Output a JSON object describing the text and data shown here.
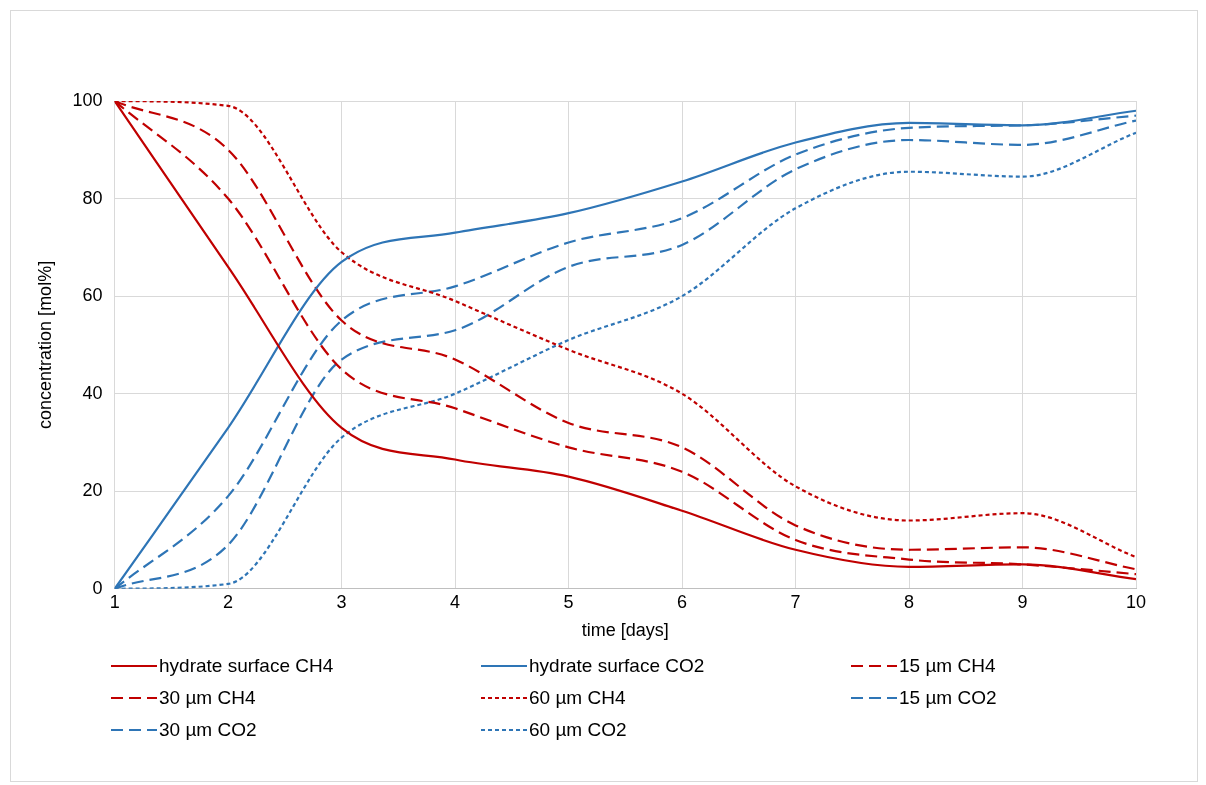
{
  "chart_data": {
    "type": "line",
    "xlabel": "time [days]",
    "ylabel": "concentration [mol%]",
    "x": [
      1,
      2,
      3,
      4,
      5,
      6,
      7,
      8,
      9,
      10
    ],
    "xlim": [
      1,
      10
    ],
    "xticks": [
      1,
      2,
      3,
      4,
      5,
      6,
      7,
      8,
      9,
      10
    ],
    "ylim": [
      0,
      100
    ],
    "yticks": [
      0,
      20,
      40,
      60,
      80,
      100
    ],
    "grid": true,
    "legend": "bottom",
    "marker": "none",
    "series": [
      {
        "name": "hydrate surface CH4",
        "color": "#c00000",
        "line_style": "solid",
        "values": [
          100,
          66,
          33,
          26.5,
          23,
          16,
          8,
          4.5,
          5,
          2
        ]
      },
      {
        "name": "hydrate surface CO2",
        "color": "#2e75b6",
        "line_style": "solid",
        "values": [
          0,
          33,
          67,
          73,
          77,
          83.5,
          91.5,
          95.5,
          95,
          98
        ]
      },
      {
        "name": "15 µm CH4",
        "color": "#c00000",
        "line_style": "dashed",
        "values": [
          100,
          80,
          45,
          37,
          29,
          24,
          10,
          6,
          5,
          3
        ]
      },
      {
        "name": "30 µm CH4",
        "color": "#c00000",
        "line_style": "dashed",
        "values": [
          100,
          90,
          55,
          47,
          34,
          29,
          13,
          8,
          8.5,
          4
        ]
      },
      {
        "name": "60 µm CH4",
        "color": "#c00000",
        "line_style": "dotted",
        "values": [
          100,
          99,
          69,
          59,
          49,
          40,
          21,
          14,
          15.5,
          6.5
        ]
      },
      {
        "name": "15 µm CO2",
        "color": "#2e75b6",
        "line_style": "dashed",
        "values": [
          0,
          19,
          55,
          62,
          71,
          76,
          89,
          94.5,
          95,
          97
        ]
      },
      {
        "name": "30 µm CO2",
        "color": "#2e75b6",
        "line_style": "dashed",
        "values": [
          0,
          9,
          47,
          53,
          66,
          70.5,
          86,
          92,
          91,
          96
        ]
      },
      {
        "name": "60 µm CO2",
        "color": "#2e75b6",
        "line_style": "dotted",
        "values": [
          0,
          1,
          31,
          40,
          51,
          60,
          78,
          85.5,
          84.5,
          93.5
        ]
      }
    ]
  }
}
